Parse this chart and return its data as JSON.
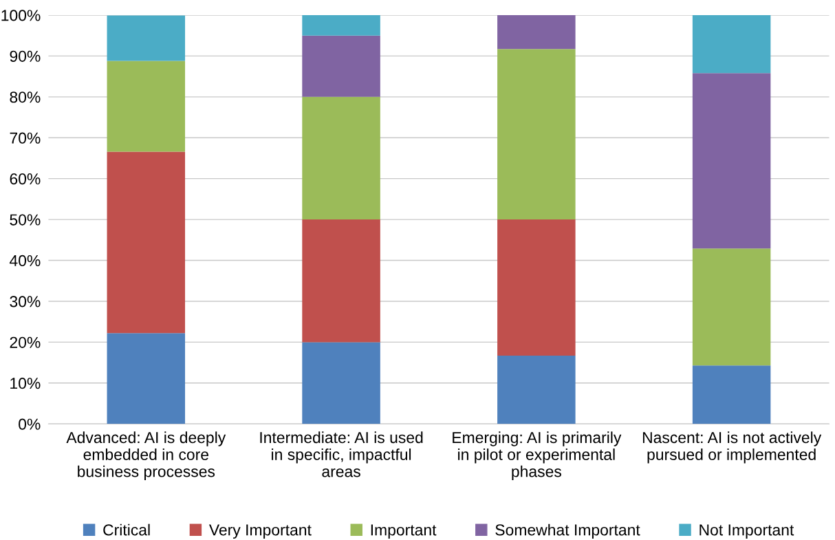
{
  "chart_data": {
    "type": "bar",
    "stacked": true,
    "categories": [
      "Advanced: AI is deeply\nembedded in core\nbusiness processes",
      "Intermediate: AI is used\nin specific, impactful\nareas",
      "Emerging: AI is primarily\nin pilot or experimental\nphases",
      "Nascent: AI is not actively\npursued or implemented"
    ],
    "series": [
      {
        "name": "Critical",
        "color": "#4f81bd",
        "values": [
          22.2,
          20,
          16.7,
          14.3
        ]
      },
      {
        "name": "Very Important",
        "color": "#c0504d",
        "values": [
          44.4,
          30,
          33.3,
          0
        ]
      },
      {
        "name": "Important",
        "color": "#9bbb59",
        "values": [
          22.2,
          30,
          41.7,
          28.6
        ]
      },
      {
        "name": "Somewhat Important",
        "color": "#8064a2",
        "values": [
          0,
          15,
          8.3,
          42.9
        ]
      },
      {
        "name": "Not Important",
        "color": "#4bacc6",
        "values": [
          11.1,
          5,
          0,
          14.3
        ]
      }
    ],
    "ylim": [
      0,
      100
    ],
    "yticks": [
      {
        "value": 0,
        "label": "0%"
      },
      {
        "value": 10,
        "label": "10%"
      },
      {
        "value": 20,
        "label": "20%"
      },
      {
        "value": 30,
        "label": "30%"
      },
      {
        "value": 40,
        "label": "40%"
      },
      {
        "value": 50,
        "label": "50%"
      },
      {
        "value": 60,
        "label": "60%"
      },
      {
        "value": 70,
        "label": "70%"
      },
      {
        "value": 80,
        "label": "80%"
      },
      {
        "value": 90,
        "label": "90%"
      },
      {
        "value": 100,
        "label": "100%"
      }
    ],
    "grid": "y",
    "legend": "bottom"
  }
}
